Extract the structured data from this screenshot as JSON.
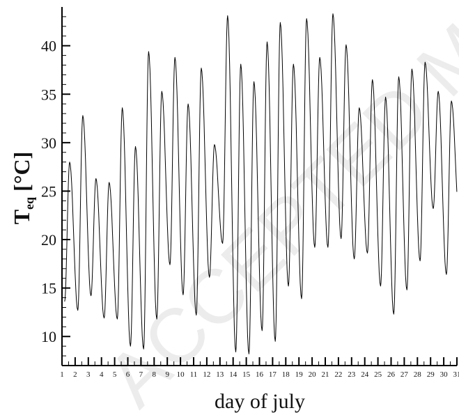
{
  "chart_data": {
    "type": "line",
    "title": "",
    "xlabel": "day of july",
    "ylabel_main": "T",
    "ylabel_sub": "eq",
    "ylabel_unit": " [°C]",
    "xlim": [
      1,
      31
    ],
    "ylim": [
      7,
      44
    ],
    "yticks": [
      10,
      15,
      20,
      25,
      30,
      35,
      40
    ],
    "xticks": [
      1,
      2,
      3,
      4,
      5,
      6,
      7,
      8,
      9,
      10,
      11,
      12,
      13,
      14,
      15,
      16,
      17,
      18,
      19,
      20,
      21,
      22,
      23,
      24,
      25,
      26,
      27,
      28,
      29,
      30,
      31
    ],
    "grid": false,
    "series": [
      {
        "color": "#000000",
        "daily_min": [
          13.6,
          12.7,
          14.2,
          11.9,
          11.8,
          9.0,
          8.7,
          11.8,
          17.4,
          14.3,
          12.2,
          16.1,
          19.6,
          8.4,
          8.2,
          10.6,
          9.5,
          15.2,
          13.9,
          19.2,
          19.2,
          20.1,
          18.0,
          18.6,
          15.2,
          12.3,
          14.8,
          17.8,
          23.2,
          16.4,
          21.8
        ],
        "daily_max": [
          28.0,
          32.8,
          26.3,
          25.9,
          33.6,
          29.6,
          39.4,
          35.3,
          38.8,
          34.0,
          37.7,
          29.8,
          43.1,
          38.1,
          36.3,
          40.4,
          42.4,
          38.1,
          42.8,
          38.8,
          43.3,
          40.1,
          33.6,
          36.5,
          34.7,
          36.8,
          37.6,
          38.3,
          35.3,
          34.3,
          27.0
        ]
      }
    ]
  },
  "watermark": "ACCEPTED MANUSCRIPT"
}
